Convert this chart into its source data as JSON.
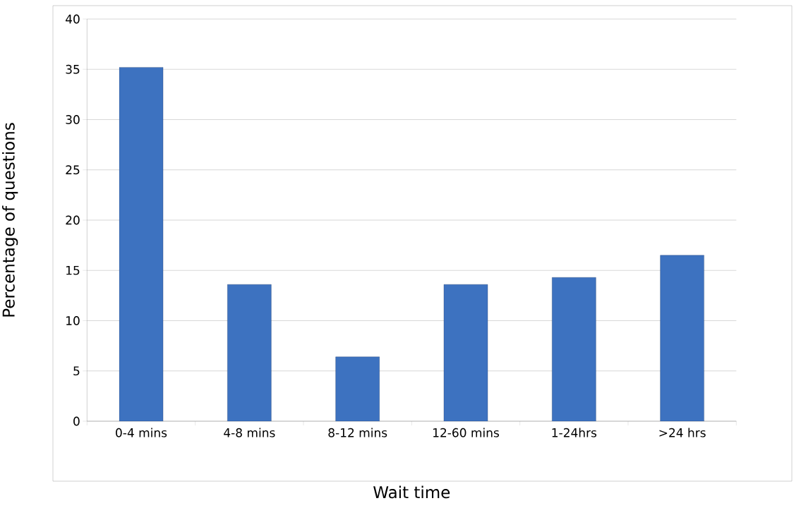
{
  "chart_data": {
    "type": "bar",
    "xlabel": "Wait time",
    "ylabel": "Percentage of questions",
    "categories": [
      "0-4 mins",
      "4-8 mins",
      "8-12 mins",
      "12-60 mins",
      "1-24hrs",
      ">24 hrs"
    ],
    "values": [
      35.2,
      13.6,
      6.4,
      13.6,
      14.3,
      16.5
    ],
    "color": "#3d72c0",
    "ylim": [
      0,
      40
    ],
    "yticks": [
      0,
      5,
      10,
      15,
      20,
      25,
      30,
      35,
      40
    ],
    "grid": "y"
  }
}
